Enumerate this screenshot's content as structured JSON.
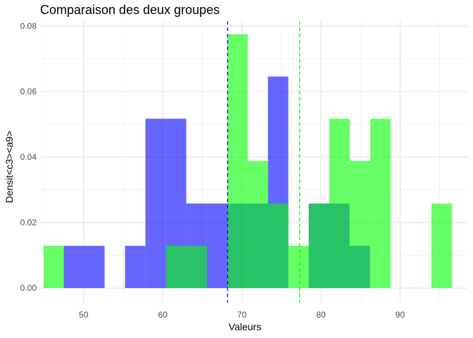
{
  "chart_data": {
    "type": "histogram",
    "title": "Comparaison des deux groupes",
    "xlabel": "Valeurs",
    "ylabel": "Densit<c3><a9>",
    "xlim": [
      44.5,
      98.5
    ],
    "ylim": [
      -0.0045,
      0.0815
    ],
    "x_ticks": [
      50,
      60,
      70,
      80,
      90
    ],
    "y_ticks": [
      0.0,
      0.02,
      0.04,
      0.06,
      0.08
    ],
    "y_tick_labels": [
      "0.00",
      "0.02",
      "0.04",
      "0.06",
      "0.08"
    ],
    "bin_width": 2.58,
    "grid": true,
    "legend": "none",
    "series": [
      {
        "color": "#0000ff",
        "opacity": 0.6,
        "bins": [
          {
            "x0": 47.49,
            "x1": 50.07,
            "density": 0.0129
          },
          {
            "x0": 50.07,
            "x1": 52.65,
            "density": 0.0129
          },
          {
            "x0": 55.23,
            "x1": 57.81,
            "density": 0.0129
          },
          {
            "x0": 57.81,
            "x1": 60.39,
            "density": 0.0517
          },
          {
            "x0": 60.39,
            "x1": 62.97,
            "density": 0.0517
          },
          {
            "x0": 62.97,
            "x1": 65.55,
            "density": 0.0258
          },
          {
            "x0": 65.55,
            "x1": 68.13,
            "density": 0.0258
          },
          {
            "x0": 68.13,
            "x1": 70.71,
            "density": 0.0258
          },
          {
            "x0": 70.71,
            "x1": 73.29,
            "density": 0.0258
          },
          {
            "x0": 73.29,
            "x1": 75.87,
            "density": 0.0646
          },
          {
            "x0": 78.45,
            "x1": 81.03,
            "density": 0.0258
          },
          {
            "x0": 81.03,
            "x1": 83.61,
            "density": 0.0258
          },
          {
            "x0": 83.61,
            "x1": 86.19,
            "density": 0.0129
          }
        ],
        "mean": 68.2
      },
      {
        "color": "#00ff00",
        "opacity": 0.6,
        "bins": [
          {
            "x0": 44.94,
            "x1": 47.52,
            "density": 0.0129
          },
          {
            "x0": 60.42,
            "x1": 63.0,
            "density": 0.0129
          },
          {
            "x0": 63.0,
            "x1": 65.58,
            "density": 0.0129
          },
          {
            "x0": 68.16,
            "x1": 70.74,
            "density": 0.0775
          },
          {
            "x0": 70.74,
            "x1": 73.32,
            "density": 0.0388
          },
          {
            "x0": 73.32,
            "x1": 75.9,
            "density": 0.0258
          },
          {
            "x0": 75.9,
            "x1": 78.48,
            "density": 0.0129
          },
          {
            "x0": 78.48,
            "x1": 81.06,
            "density": 0.0258
          },
          {
            "x0": 81.06,
            "x1": 83.64,
            "density": 0.0517
          },
          {
            "x0": 83.64,
            "x1": 86.22,
            "density": 0.0388
          },
          {
            "x0": 86.22,
            "x1": 88.8,
            "density": 0.0517
          },
          {
            "x0": 93.96,
            "x1": 96.54,
            "density": 0.0258
          }
        ],
        "mean": 77.3
      }
    ]
  }
}
